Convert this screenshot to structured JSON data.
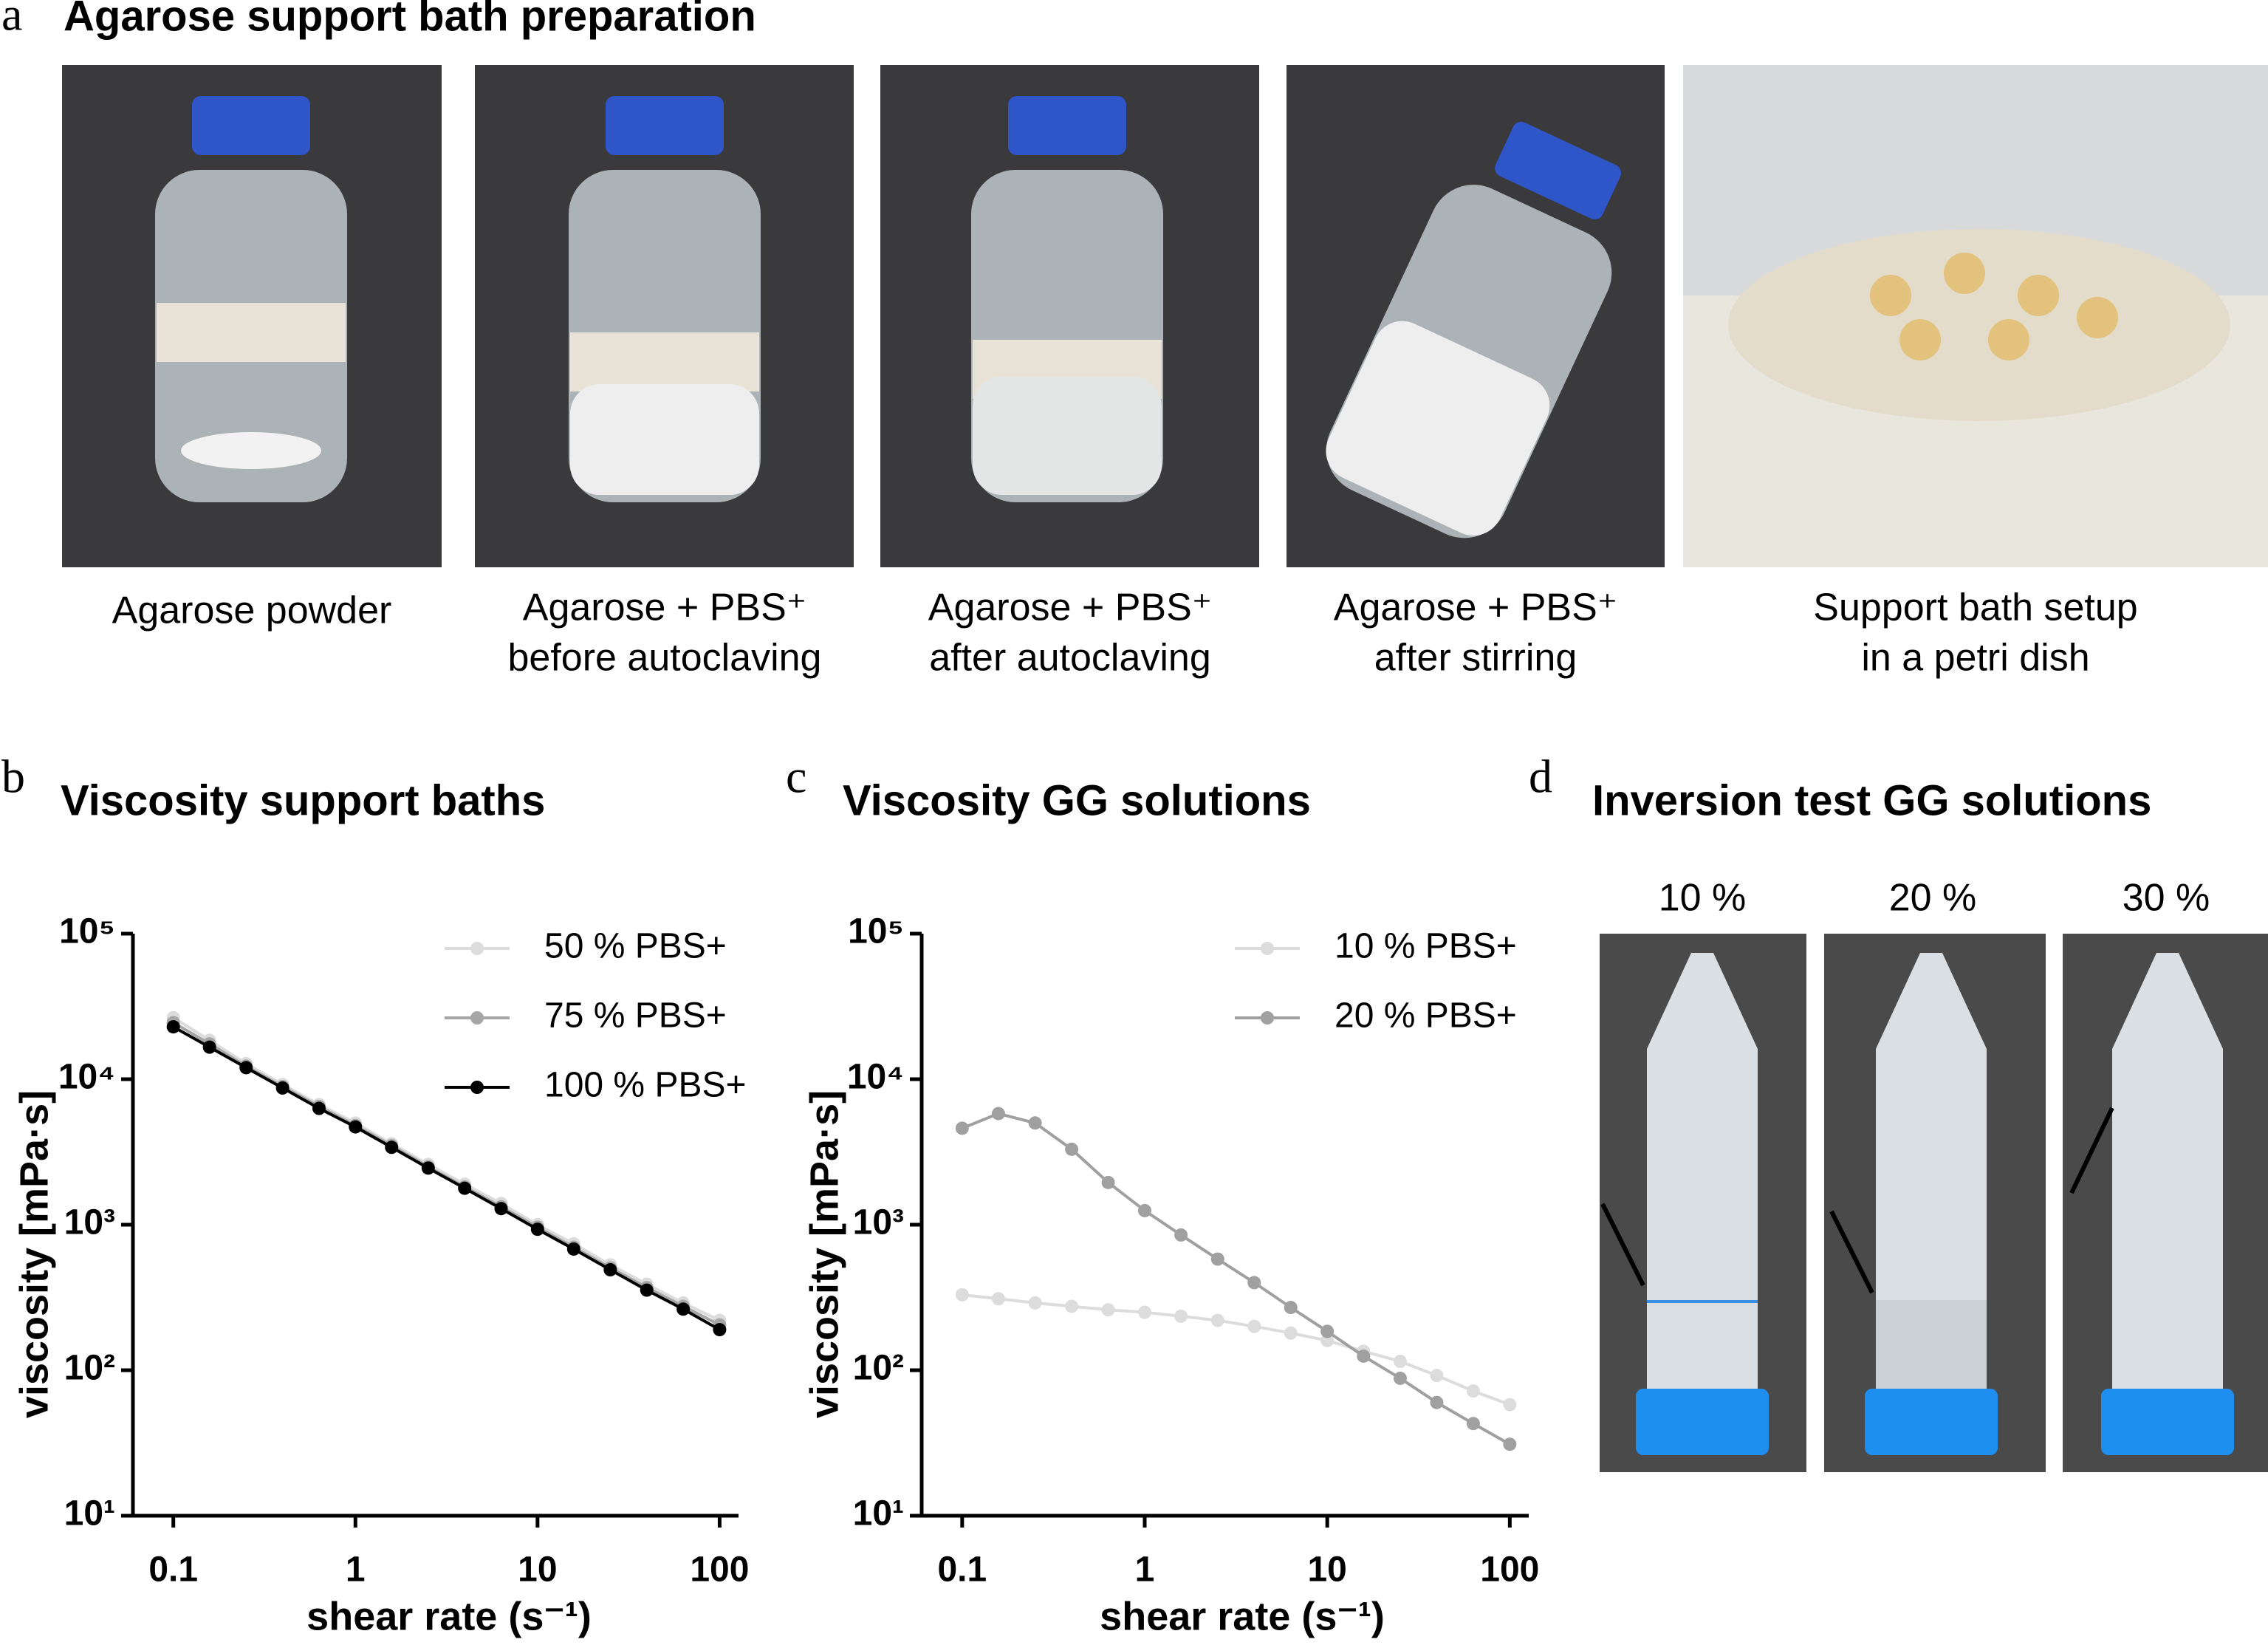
{
  "panel_a": {
    "label": "a",
    "title": "Agarose support bath preparation",
    "captions": [
      [
        "Agarose powder"
      ],
      [
        "Agarose + PBS⁺",
        "before autoclaving"
      ],
      [
        "Agarose + PBS⁺",
        "after autoclaving"
      ],
      [
        "Agarose + PBS⁺",
        "after stirring"
      ],
      [
        "Support bath setup",
        "in a petri dish"
      ]
    ]
  },
  "chart_data": [
    {
      "type": "line",
      "panel_label": "b",
      "title": "Viscosity support baths",
      "x_label": "shear rate (s⁻¹)",
      "y_label": "viscosity [mPa·s]",
      "x": [
        0.1,
        0.158,
        0.251,
        0.398,
        0.631,
        1,
        1.58,
        2.51,
        3.98,
        6.31,
        10,
        15.8,
        25.1,
        39.8,
        63.1,
        100
      ],
      "xlim": [
        0.06,
        127
      ],
      "xticks": [
        0.1,
        1,
        10,
        100
      ],
      "xscale": "log",
      "yscale": "log",
      "ylim": [
        10,
        100000
      ],
      "yticks": [
        {
          "value": 10,
          "label": "10¹"
        },
        {
          "value": 100,
          "label": "10²"
        },
        {
          "value": 1000,
          "label": "10³"
        },
        {
          "value": 10000,
          "label": "10⁴"
        },
        {
          "value": 100000,
          "label": "10⁵"
        }
      ],
      "legend": "upper right",
      "series": [
        {
          "name": "50 % PBS+",
          "color": "#dcdcdc",
          "values": [
            26500,
            18500,
            12800,
            9200,
            6700,
            5000,
            3600,
            2600,
            1900,
            1400,
            1000,
            740,
            530,
            390,
            290,
            220
          ]
        },
        {
          "name": "75 % PBS+",
          "color": "#a6a6a6",
          "values": [
            24500,
            17500,
            12300,
            8900,
            6500,
            4800,
            3500,
            2500,
            1820,
            1330,
            960,
            700,
            505,
            370,
            275,
            205
          ]
        },
        {
          "name": "100 % PBS+",
          "color": "#000000",
          "values": [
            22900,
            16600,
            12000,
            8700,
            6300,
            4700,
            3400,
            2450,
            1780,
            1290,
            930,
            680,
            490,
            355,
            263,
            190
          ]
        }
      ]
    },
    {
      "type": "line",
      "panel_label": "c",
      "title": "Viscosity GG solutions",
      "x_label": "shear rate (s⁻¹)",
      "y_label": "viscosity [mPa·s]",
      "x": [
        0.1,
        0.158,
        0.251,
        0.398,
        0.631,
        1,
        1.58,
        2.51,
        3.98,
        6.31,
        10,
        15.8,
        25.1,
        39.8,
        63.1,
        100
      ],
      "xlim": [
        0.06,
        127
      ],
      "xticks": [
        0.1,
        1,
        10,
        100
      ],
      "xscale": "log",
      "yscale": "log",
      "ylim": [
        10,
        100000
      ],
      "yticks": [
        {
          "value": 10,
          "label": "10¹"
        },
        {
          "value": 100,
          "label": "10²"
        },
        {
          "value": 1000,
          "label": "10³"
        },
        {
          "value": 10000,
          "label": "10⁴"
        },
        {
          "value": 100000,
          "label": "10⁵"
        }
      ],
      "legend": "upper right",
      "series": [
        {
          "name": "10 % PBS+",
          "color": "#dcdcdc",
          "values": [
            330,
            310,
            290,
            275,
            260,
            250,
            235,
            220,
            200,
            180,
            160,
            135,
            115,
            92,
            72,
            58
          ]
        },
        {
          "name": "20 % PBS+",
          "color": "#a0a0a0",
          "values": [
            4600,
            5800,
            5000,
            3300,
            1950,
            1250,
            850,
            580,
            400,
            270,
            185,
            125,
            88,
            60,
            43,
            31
          ]
        }
      ]
    }
  ],
  "panel_d": {
    "label": "d",
    "title": "Inversion test GG solutions",
    "concentrations": [
      "10 %",
      "20 %",
      "30 %"
    ]
  }
}
